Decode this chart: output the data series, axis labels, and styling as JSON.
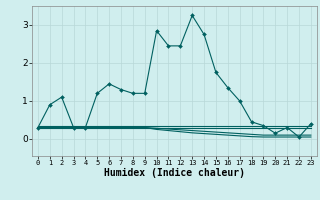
{
  "xlabel": "Humidex (Indice chaleur)",
  "x": [
    0,
    1,
    2,
    3,
    4,
    5,
    6,
    7,
    8,
    9,
    10,
    11,
    12,
    13,
    14,
    15,
    16,
    17,
    18,
    19,
    20,
    21,
    22,
    23
  ],
  "y_main": [
    0.3,
    0.9,
    1.1,
    0.3,
    0.3,
    1.2,
    1.45,
    1.3,
    1.2,
    1.2,
    2.85,
    2.45,
    2.45,
    3.25,
    2.75,
    1.75,
    1.35,
    1.0,
    0.45,
    0.35,
    0.15,
    0.3,
    0.05,
    0.4
  ],
  "y_flat1": [
    0.35,
    0.35,
    0.35,
    0.35,
    0.35,
    0.35,
    0.35,
    0.35,
    0.35,
    0.35,
    0.35,
    0.35,
    0.35,
    0.35,
    0.35,
    0.35,
    0.35,
    0.35,
    0.35,
    0.35,
    0.35,
    0.35,
    0.35,
    0.35
  ],
  "y_flat2": [
    0.3,
    0.3,
    0.3,
    0.3,
    0.3,
    0.3,
    0.3,
    0.3,
    0.3,
    0.3,
    0.3,
    0.3,
    0.3,
    0.3,
    0.3,
    0.3,
    0.3,
    0.3,
    0.3,
    0.3,
    0.3,
    0.3,
    0.3,
    0.3
  ],
  "y_flat3": [
    0.3,
    0.3,
    0.3,
    0.3,
    0.3,
    0.3,
    0.3,
    0.3,
    0.3,
    0.3,
    0.28,
    0.26,
    0.24,
    0.22,
    0.2,
    0.18,
    0.16,
    0.14,
    0.12,
    0.1,
    0.1,
    0.1,
    0.1,
    0.1
  ],
  "y_flat4": [
    0.3,
    0.3,
    0.3,
    0.3,
    0.3,
    0.3,
    0.3,
    0.3,
    0.3,
    0.3,
    0.25,
    0.22,
    0.19,
    0.16,
    0.14,
    0.12,
    0.1,
    0.08,
    0.06,
    0.05,
    0.05,
    0.05,
    0.05,
    0.05
  ],
  "line_color": "#006060",
  "bg_color": "#d0eeee",
  "grid_color": "#b8d8d8",
  "xlim": [
    -0.5,
    23.5
  ],
  "ylim": [
    -0.45,
    3.5
  ],
  "yticks": [
    0,
    1,
    2,
    3
  ],
  "xticks": [
    0,
    1,
    2,
    3,
    4,
    5,
    6,
    7,
    8,
    9,
    10,
    11,
    12,
    13,
    14,
    15,
    16,
    17,
    18,
    19,
    20,
    21,
    22,
    23
  ]
}
